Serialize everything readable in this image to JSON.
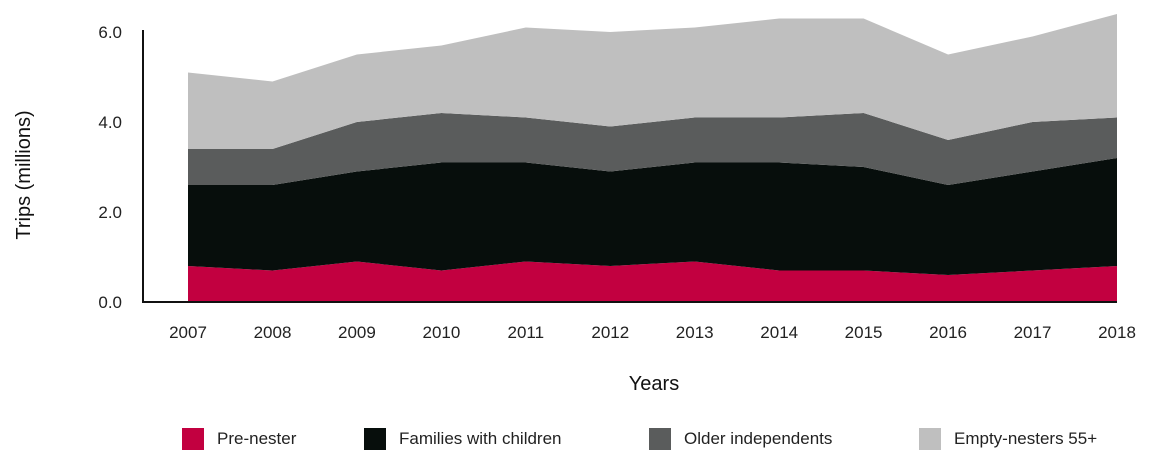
{
  "chart_data": {
    "type": "area",
    "stacked": true,
    "title": "",
    "xlabel": "Years",
    "ylabel": "Trips (millions)",
    "ylim": [
      0,
      6.0
    ],
    "yticks": [
      "0.0",
      "2.0",
      "4.0",
      "6.0"
    ],
    "grid": false,
    "legend_position": "bottom",
    "categories": [
      "2007",
      "2008",
      "2009",
      "2010",
      "2011",
      "2012",
      "2013",
      "2014",
      "2015",
      "2016",
      "2017",
      "2018"
    ],
    "series": [
      {
        "name": "Pre-nester",
        "color": "#c20040",
        "values": [
          0.8,
          0.7,
          0.9,
          0.7,
          0.9,
          0.8,
          0.9,
          0.7,
          0.7,
          0.6,
          0.7,
          0.8
        ]
      },
      {
        "name": "Families with children",
        "color": "#070e0c",
        "values": [
          1.8,
          1.9,
          2.0,
          2.4,
          2.2,
          2.1,
          2.2,
          2.4,
          2.3,
          2.0,
          2.2,
          2.4
        ]
      },
      {
        "name": "Older independents",
        "color": "#5a5c5c",
        "values": [
          0.8,
          0.8,
          1.1,
          1.1,
          1.0,
          1.0,
          1.0,
          1.0,
          1.2,
          1.0,
          1.1,
          0.9
        ]
      },
      {
        "name": "Empty-nesters 55+",
        "color": "#bfbfbf",
        "values": [
          1.7,
          1.5,
          1.5,
          1.5,
          2.0,
          2.1,
          2.0,
          2.2,
          2.1,
          1.9,
          1.9,
          2.3
        ]
      }
    ]
  }
}
